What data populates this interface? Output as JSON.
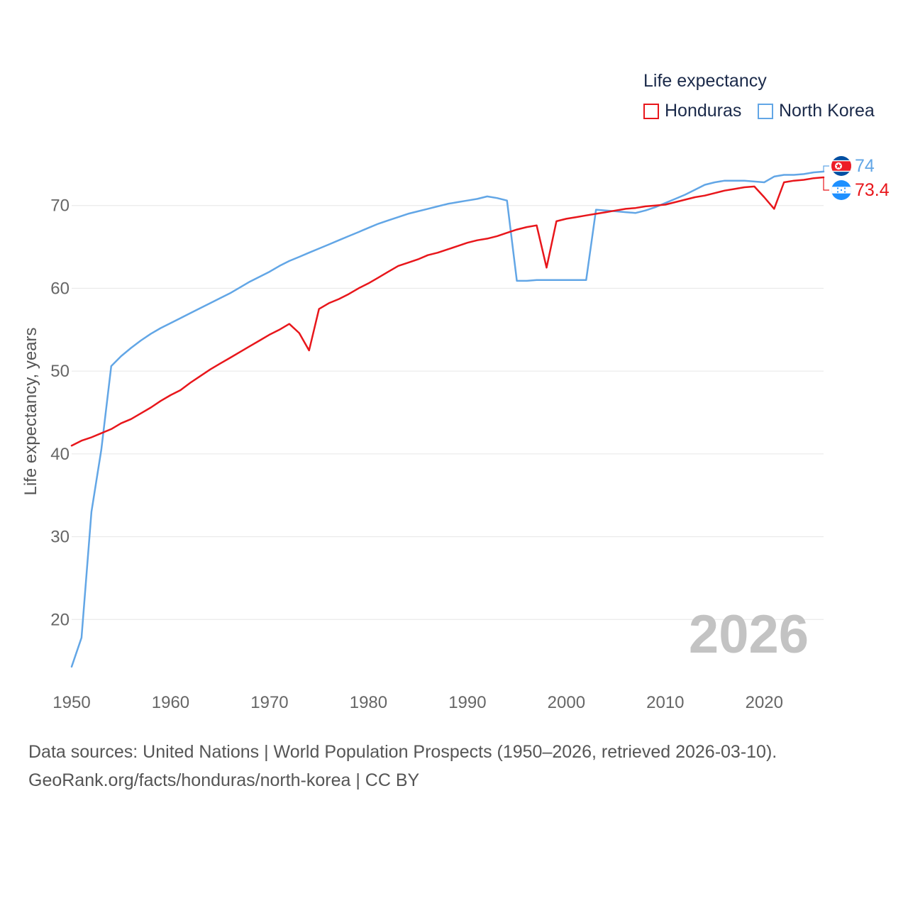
{
  "legend": {
    "title": "Life expectancy",
    "items": [
      {
        "label": "Honduras",
        "color": "#e8161b"
      },
      {
        "label": "North Korea",
        "color": "#62a6e6"
      }
    ]
  },
  "year_watermark": "2026",
  "footer": {
    "line1": "Data sources: United Nations | World Population Prospects (1950–2026, retrieved 2026-03-10).",
    "line2": "GeoRank.org/facts/honduras/north-korea | CC BY"
  },
  "chart_data": {
    "type": "line",
    "ylabel": "Life expectancy, years",
    "xlabel": "",
    "xlim": [
      1950,
      2026
    ],
    "ylim": [
      13,
      80
    ],
    "xticks": [
      "1950",
      "1960",
      "1970",
      "1980",
      "1990",
      "2000",
      "2010",
      "2020"
    ],
    "yticks": [
      "20",
      "30",
      "40",
      "50",
      "60",
      "70"
    ],
    "grid": true,
    "series": [
      {
        "name": "Honduras",
        "color": "#e8161b",
        "end_label": "73.4",
        "flag_icon": "honduras-flag-icon",
        "points": [
          [
            1950,
            41.0
          ],
          [
            1951,
            41.6
          ],
          [
            1952,
            42.0
          ],
          [
            1953,
            42.5
          ],
          [
            1954,
            43.0
          ],
          [
            1955,
            43.7
          ],
          [
            1956,
            44.2
          ],
          [
            1957,
            44.9
          ],
          [
            1958,
            45.6
          ],
          [
            1959,
            46.4
          ],
          [
            1960,
            47.1
          ],
          [
            1961,
            47.7
          ],
          [
            1962,
            48.6
          ],
          [
            1963,
            49.4
          ],
          [
            1964,
            50.2
          ],
          [
            1965,
            50.9
          ],
          [
            1966,
            51.6
          ],
          [
            1967,
            52.3
          ],
          [
            1968,
            53.0
          ],
          [
            1969,
            53.7
          ],
          [
            1970,
            54.4
          ],
          [
            1971,
            55.0
          ],
          [
            1972,
            55.7
          ],
          [
            1973,
            54.6
          ],
          [
            1974,
            52.5
          ],
          [
            1975,
            57.5
          ],
          [
            1976,
            58.2
          ],
          [
            1977,
            58.7
          ],
          [
            1978,
            59.3
          ],
          [
            1979,
            60.0
          ],
          [
            1980,
            60.6
          ],
          [
            1981,
            61.3
          ],
          [
            1982,
            62.0
          ],
          [
            1983,
            62.7
          ],
          [
            1984,
            63.1
          ],
          [
            1985,
            63.5
          ],
          [
            1986,
            64.0
          ],
          [
            1987,
            64.3
          ],
          [
            1988,
            64.7
          ],
          [
            1989,
            65.1
          ],
          [
            1990,
            65.5
          ],
          [
            1991,
            65.8
          ],
          [
            1992,
            66.0
          ],
          [
            1993,
            66.3
          ],
          [
            1994,
            66.7
          ],
          [
            1995,
            67.1
          ],
          [
            1996,
            67.4
          ],
          [
            1997,
            67.6
          ],
          [
            1998,
            62.5
          ],
          [
            1999,
            68.1
          ],
          [
            2000,
            68.4
          ],
          [
            2001,
            68.6
          ],
          [
            2002,
            68.8
          ],
          [
            2003,
            69.0
          ],
          [
            2004,
            69.2
          ],
          [
            2005,
            69.4
          ],
          [
            2006,
            69.6
          ],
          [
            2007,
            69.7
          ],
          [
            2008,
            69.9
          ],
          [
            2009,
            70.0
          ],
          [
            2010,
            70.1
          ],
          [
            2011,
            70.4
          ],
          [
            2012,
            70.7
          ],
          [
            2013,
            71.0
          ],
          [
            2014,
            71.2
          ],
          [
            2015,
            71.5
          ],
          [
            2016,
            71.8
          ],
          [
            2017,
            72.0
          ],
          [
            2018,
            72.2
          ],
          [
            2019,
            72.3
          ],
          [
            2020,
            71.0
          ],
          [
            2021,
            69.6
          ],
          [
            2022,
            72.8
          ],
          [
            2023,
            73.0
          ],
          [
            2024,
            73.1
          ],
          [
            2025,
            73.3
          ],
          [
            2026,
            73.4
          ]
        ]
      },
      {
        "name": "North Korea",
        "color": "#62a6e6",
        "end_label": "74",
        "flag_icon": "north-korea-flag-icon",
        "points": [
          [
            1950,
            14.3
          ],
          [
            1951,
            17.8
          ],
          [
            1952,
            33.0
          ],
          [
            1953,
            40.5
          ],
          [
            1954,
            50.6
          ],
          [
            1955,
            51.8
          ],
          [
            1956,
            52.8
          ],
          [
            1957,
            53.7
          ],
          [
            1958,
            54.5
          ],
          [
            1959,
            55.2
          ],
          [
            1960,
            55.8
          ],
          [
            1961,
            56.4
          ],
          [
            1962,
            57.0
          ],
          [
            1963,
            57.6
          ],
          [
            1964,
            58.2
          ],
          [
            1965,
            58.8
          ],
          [
            1966,
            59.4
          ],
          [
            1967,
            60.1
          ],
          [
            1968,
            60.8
          ],
          [
            1969,
            61.4
          ],
          [
            1970,
            62.0
          ],
          [
            1971,
            62.7
          ],
          [
            1972,
            63.3
          ],
          [
            1973,
            63.8
          ],
          [
            1974,
            64.3
          ],
          [
            1975,
            64.8
          ],
          [
            1976,
            65.3
          ],
          [
            1977,
            65.8
          ],
          [
            1978,
            66.3
          ],
          [
            1979,
            66.8
          ],
          [
            1980,
            67.3
          ],
          [
            1981,
            67.8
          ],
          [
            1982,
            68.2
          ],
          [
            1983,
            68.6
          ],
          [
            1984,
            69.0
          ],
          [
            1985,
            69.3
          ],
          [
            1986,
            69.6
          ],
          [
            1987,
            69.9
          ],
          [
            1988,
            70.2
          ],
          [
            1989,
            70.4
          ],
          [
            1990,
            70.6
          ],
          [
            1991,
            70.8
          ],
          [
            1992,
            71.1
          ],
          [
            1993,
            70.9
          ],
          [
            1994,
            70.6
          ],
          [
            1995,
            60.9
          ],
          [
            1996,
            60.9
          ],
          [
            1997,
            61.0
          ],
          [
            1998,
            61.0
          ],
          [
            1999,
            61.0
          ],
          [
            2000,
            61.0
          ],
          [
            2001,
            61.0
          ],
          [
            2002,
            61.0
          ],
          [
            2003,
            69.5
          ],
          [
            2004,
            69.4
          ],
          [
            2005,
            69.3
          ],
          [
            2006,
            69.2
          ],
          [
            2007,
            69.1
          ],
          [
            2008,
            69.4
          ],
          [
            2009,
            69.8
          ],
          [
            2010,
            70.3
          ],
          [
            2011,
            70.8
          ],
          [
            2012,
            71.3
          ],
          [
            2013,
            71.9
          ],
          [
            2014,
            72.5
          ],
          [
            2015,
            72.8
          ],
          [
            2016,
            73.0
          ],
          [
            2017,
            73.0
          ],
          [
            2018,
            73.0
          ],
          [
            2019,
            72.9
          ],
          [
            2020,
            72.8
          ],
          [
            2021,
            73.5
          ],
          [
            2022,
            73.7
          ],
          [
            2023,
            73.7
          ],
          [
            2024,
            73.8
          ],
          [
            2025,
            74.0
          ],
          [
            2026,
            74.1
          ]
        ]
      }
    ]
  }
}
